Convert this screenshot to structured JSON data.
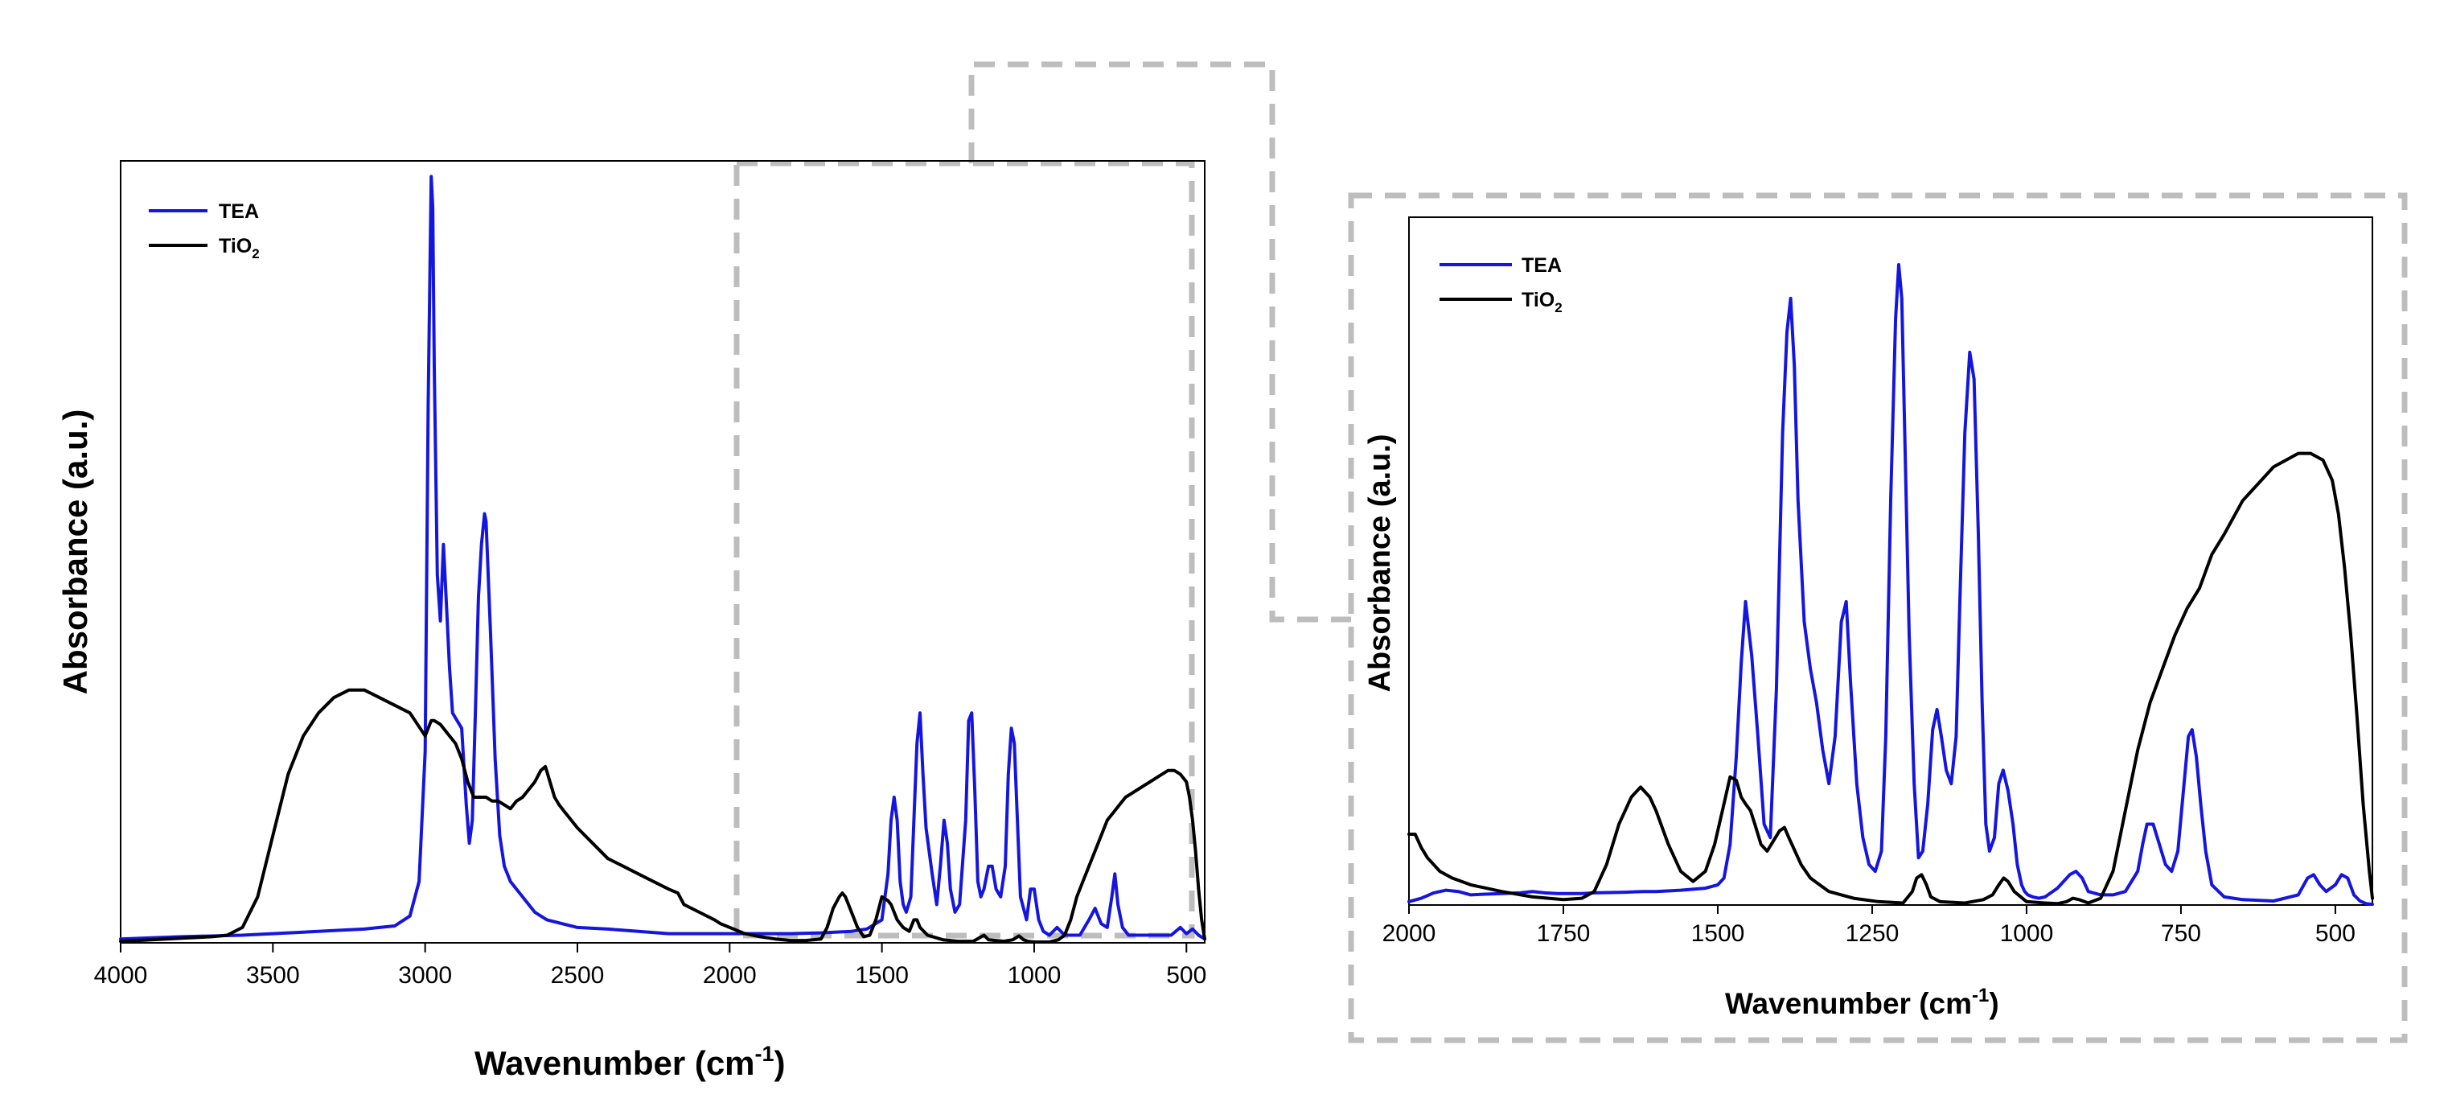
{
  "chart_data": [
    {
      "type": "line",
      "panel": "full-spectrum",
      "xlabel": "Wavenumber (cm",
      "xlabel_sup": "-1",
      "xlabel_close": ")",
      "ylabel": "Absorbance (a.u.)",
      "xlim": [
        4000,
        440
      ],
      "ylim": [
        0,
        1.0
      ],
      "xticks": [
        4000,
        3500,
        3000,
        2500,
        2000,
        1500,
        1000,
        500
      ],
      "legend": {
        "position": "top-left",
        "entries": [
          {
            "name": "TEA",
            "sub": ""
          },
          {
            "name": "TiO",
            "sub": "2"
          }
        ]
      },
      "series": [
        {
          "name": "TEA",
          "color": "#1515e0",
          "x": [
            4000,
            3800,
            3600,
            3500,
            3400,
            3300,
            3200,
            3150,
            3100,
            3050,
            3020,
            3000,
            2990,
            2980,
            2975,
            2970,
            2960,
            2950,
            2940,
            2930,
            2920,
            2910,
            2895,
            2880,
            2865,
            2855,
            2845,
            2835,
            2825,
            2815,
            2805,
            2800,
            2795,
            2785,
            2770,
            2755,
            2740,
            2720,
            2700,
            2680,
            2660,
            2640,
            2620,
            2600,
            2550,
            2500,
            2400,
            2300,
            2200,
            2100,
            2000,
            1900,
            1800,
            1700,
            1600,
            1550,
            1500,
            1480,
            1470,
            1460,
            1450,
            1440,
            1430,
            1420,
            1405,
            1395,
            1385,
            1375,
            1365,
            1355,
            1345,
            1335,
            1320,
            1308,
            1296,
            1285,
            1275,
            1260,
            1245,
            1225,
            1215,
            1205,
            1195,
            1185,
            1175,
            1165,
            1150,
            1138,
            1125,
            1110,
            1095,
            1085,
            1075,
            1065,
            1055,
            1045,
            1025,
            1012,
            1000,
            985,
            970,
            950,
            925,
            900,
            875,
            850,
            820,
            800,
            780,
            760,
            745,
            735,
            725,
            710,
            690,
            650,
            600,
            550,
            520,
            500,
            480,
            460,
            440
          ],
          "y": [
            0.005,
            0.008,
            0.01,
            0.012,
            0.014,
            0.016,
            0.018,
            0.02,
            0.022,
            0.035,
            0.08,
            0.25,
            0.7,
            1.0,
            0.96,
            0.75,
            0.48,
            0.42,
            0.52,
            0.44,
            0.36,
            0.3,
            0.29,
            0.28,
            0.18,
            0.13,
            0.16,
            0.3,
            0.45,
            0.52,
            0.56,
            0.55,
            0.5,
            0.4,
            0.24,
            0.14,
            0.1,
            0.08,
            0.07,
            0.06,
            0.05,
            0.04,
            0.035,
            0.03,
            0.025,
            0.02,
            0.018,
            0.015,
            0.012,
            0.012,
            0.012,
            0.012,
            0.012,
            0.013,
            0.015,
            0.018,
            0.03,
            0.09,
            0.16,
            0.19,
            0.16,
            0.08,
            0.05,
            0.04,
            0.06,
            0.16,
            0.26,
            0.3,
            0.22,
            0.15,
            0.12,
            0.09,
            0.05,
            0.1,
            0.16,
            0.13,
            0.07,
            0.04,
            0.05,
            0.16,
            0.29,
            0.3,
            0.2,
            0.08,
            0.06,
            0.07,
            0.1,
            0.1,
            0.07,
            0.06,
            0.1,
            0.22,
            0.28,
            0.26,
            0.16,
            0.06,
            0.03,
            0.07,
            0.07,
            0.03,
            0.015,
            0.01,
            0.02,
            0.01,
            0.01,
            0.01,
            0.03,
            0.045,
            0.025,
            0.02,
            0.06,
            0.09,
            0.05,
            0.02,
            0.01,
            0.01,
            0.01,
            0.01,
            0.02,
            0.012,
            0.018,
            0.01,
            0.005
          ]
        },
        {
          "name": "TiO2",
          "color": "#000000",
          "x": [
            4000,
            3900,
            3800,
            3700,
            3650,
            3600,
            3550,
            3500,
            3450,
            3400,
            3350,
            3300,
            3250,
            3200,
            3150,
            3100,
            3050,
            3000,
            2980,
            2970,
            2950,
            2920,
            2900,
            2880,
            2860,
            2840,
            2820,
            2800,
            2780,
            2760,
            2740,
            2720,
            2700,
            2680,
            2660,
            2640,
            2620,
            2605,
            2590,
            2575,
            2560,
            2540,
            2520,
            2500,
            2450,
            2400,
            2350,
            2300,
            2250,
            2200,
            2170,
            2150,
            2100,
            2050,
            2030,
            2000,
            1950,
            1900,
            1850,
            1800,
            1750,
            1700,
            1680,
            1660,
            1640,
            1630,
            1620,
            1600,
            1580,
            1560,
            1540,
            1520,
            1500,
            1480,
            1470,
            1460,
            1450,
            1440,
            1430,
            1410,
            1395,
            1385,
            1375,
            1350,
            1300,
            1250,
            1200,
            1165,
            1150,
            1100,
            1070,
            1050,
            1035,
            1020,
            1000,
            950,
            920,
            900,
            880,
            860,
            840,
            820,
            800,
            780,
            760,
            740,
            720,
            700,
            680,
            660,
            640,
            620,
            600,
            580,
            560,
            540,
            520,
            500,
            490,
            480,
            470,
            460,
            450,
            440
          ],
          "y": [
            0.002,
            0.004,
            0.006,
            0.008,
            0.01,
            0.02,
            0.06,
            0.14,
            0.22,
            0.27,
            0.3,
            0.32,
            0.33,
            0.33,
            0.32,
            0.31,
            0.3,
            0.27,
            0.29,
            0.29,
            0.285,
            0.27,
            0.26,
            0.24,
            0.21,
            0.19,
            0.19,
            0.19,
            0.185,
            0.185,
            0.18,
            0.175,
            0.185,
            0.19,
            0.2,
            0.21,
            0.225,
            0.23,
            0.21,
            0.19,
            0.18,
            0.17,
            0.16,
            0.15,
            0.13,
            0.11,
            0.1,
            0.09,
            0.08,
            0.07,
            0.065,
            0.05,
            0.04,
            0.03,
            0.025,
            0.02,
            0.012,
            0.008,
            0.005,
            0.003,
            0.003,
            0.005,
            0.02,
            0.045,
            0.06,
            0.065,
            0.06,
            0.04,
            0.02,
            0.008,
            0.01,
            0.03,
            0.06,
            0.055,
            0.05,
            0.04,
            0.03,
            0.025,
            0.02,
            0.015,
            0.03,
            0.03,
            0.02,
            0.01,
            0.004,
            0.002,
            0.002,
            0.01,
            0.004,
            0.002,
            0.004,
            0.009,
            0.004,
            0.002,
            0.001,
            0.001,
            0.004,
            0.01,
            0.03,
            0.06,
            0.08,
            0.1,
            0.12,
            0.14,
            0.16,
            0.17,
            0.18,
            0.19,
            0.195,
            0.2,
            0.205,
            0.21,
            0.215,
            0.22,
            0.225,
            0.225,
            0.22,
            0.21,
            0.19,
            0.16,
            0.12,
            0.07,
            0.03,
            0.005
          ]
        }
      ]
    },
    {
      "type": "line",
      "panel": "zoom-2000-440",
      "xlabel": "Wavenumber (cm",
      "xlabel_sup": "-1",
      "xlabel_close": ")",
      "ylabel": "Absorbance (a.u.)",
      "xlim": [
        2000,
        440
      ],
      "ylim": [
        0,
        1.0
      ],
      "xticks": [
        2000,
        1750,
        1500,
        1250,
        1000,
        750,
        500
      ],
      "legend": {
        "position": "top-left",
        "entries": [
          {
            "name": "TEA",
            "sub": ""
          },
          {
            "name": "TiO",
            "sub": "2"
          }
        ]
      },
      "series": [
        {
          "name": "TEA",
          "color": "#1515e0",
          "x": [
            2000,
            1980,
            1960,
            1940,
            1920,
            1900,
            1880,
            1850,
            1820,
            1800,
            1780,
            1760,
            1720,
            1700,
            1650,
            1620,
            1600,
            1560,
            1520,
            1500,
            1490,
            1480,
            1470,
            1462,
            1455,
            1445,
            1435,
            1425,
            1415,
            1405,
            1395,
            1388,
            1382,
            1376,
            1370,
            1360,
            1350,
            1340,
            1330,
            1320,
            1310,
            1300,
            1292,
            1285,
            1275,
            1265,
            1255,
            1245,
            1235,
            1228,
            1220,
            1212,
            1207,
            1202,
            1196,
            1190,
            1182,
            1175,
            1168,
            1160,
            1152,
            1145,
            1138,
            1130,
            1122,
            1114,
            1108,
            1100,
            1092,
            1085,
            1078,
            1072,
            1066,
            1060,
            1052,
            1045,
            1038,
            1030,
            1022,
            1015,
            1008,
            1003,
            998,
            990,
            980,
            970,
            950,
            930,
            920,
            910,
            900,
            880,
            860,
            840,
            820,
            812,
            805,
            795,
            785,
            775,
            765,
            755,
            745,
            738,
            732,
            725,
            718,
            710,
            700,
            680,
            650,
            600,
            560,
            545,
            535,
            525,
            515,
            500,
            490,
            480,
            470,
            460,
            450,
            440
          ],
          "y": [
            0.005,
            0.01,
            0.018,
            0.022,
            0.02,
            0.015,
            0.016,
            0.017,
            0.018,
            0.02,
            0.018,
            0.017,
            0.017,
            0.018,
            0.019,
            0.02,
            0.02,
            0.022,
            0.025,
            0.03,
            0.04,
            0.09,
            0.22,
            0.36,
            0.45,
            0.37,
            0.25,
            0.12,
            0.1,
            0.32,
            0.7,
            0.85,
            0.9,
            0.8,
            0.6,
            0.42,
            0.35,
            0.3,
            0.23,
            0.18,
            0.25,
            0.42,
            0.45,
            0.33,
            0.18,
            0.1,
            0.06,
            0.05,
            0.08,
            0.25,
            0.6,
            0.87,
            0.95,
            0.9,
            0.65,
            0.4,
            0.18,
            0.07,
            0.08,
            0.15,
            0.26,
            0.29,
            0.25,
            0.2,
            0.18,
            0.25,
            0.45,
            0.7,
            0.82,
            0.78,
            0.55,
            0.3,
            0.12,
            0.08,
            0.1,
            0.18,
            0.2,
            0.17,
            0.12,
            0.06,
            0.03,
            0.02,
            0.015,
            0.012,
            0.01,
            0.012,
            0.025,
            0.045,
            0.05,
            0.04,
            0.02,
            0.015,
            0.015,
            0.02,
            0.05,
            0.09,
            0.12,
            0.12,
            0.09,
            0.06,
            0.05,
            0.08,
            0.18,
            0.25,
            0.26,
            0.22,
            0.15,
            0.08,
            0.03,
            0.012,
            0.008,
            0.006,
            0.015,
            0.04,
            0.045,
            0.03,
            0.02,
            0.03,
            0.045,
            0.04,
            0.015,
            0.006,
            0.002,
            0.001
          ]
        },
        {
          "name": "TiO2",
          "color": "#000000",
          "x": [
            2000,
            1990,
            1980,
            1970,
            1950,
            1930,
            1900,
            1850,
            1800,
            1750,
            1720,
            1700,
            1680,
            1660,
            1640,
            1625,
            1610,
            1600,
            1580,
            1560,
            1540,
            1520,
            1505,
            1490,
            1480,
            1470,
            1462,
            1455,
            1447,
            1440,
            1430,
            1420,
            1410,
            1400,
            1392,
            1385,
            1375,
            1365,
            1350,
            1320,
            1280,
            1240,
            1200,
            1185,
            1178,
            1170,
            1162,
            1155,
            1140,
            1100,
            1070,
            1055,
            1045,
            1037,
            1030,
            1020,
            1000,
            970,
            950,
            935,
            925,
            915,
            900,
            880,
            860,
            840,
            820,
            800,
            780,
            760,
            740,
            720,
            700,
            680,
            650,
            620,
            600,
            580,
            560,
            540,
            520,
            505,
            495,
            485,
            475,
            465,
            455,
            445,
            440
          ],
          "y": [
            0.105,
            0.105,
            0.085,
            0.07,
            0.05,
            0.04,
            0.03,
            0.02,
            0.012,
            0.008,
            0.01,
            0.02,
            0.06,
            0.12,
            0.16,
            0.175,
            0.16,
            0.14,
            0.09,
            0.05,
            0.035,
            0.05,
            0.09,
            0.15,
            0.19,
            0.185,
            0.16,
            0.15,
            0.14,
            0.12,
            0.09,
            0.08,
            0.095,
            0.11,
            0.115,
            0.1,
            0.08,
            0.06,
            0.04,
            0.02,
            0.01,
            0.005,
            0.003,
            0.02,
            0.04,
            0.045,
            0.03,
            0.012,
            0.005,
            0.003,
            0.008,
            0.015,
            0.03,
            0.04,
            0.035,
            0.02,
            0.005,
            0.003,
            0.002,
            0.005,
            0.01,
            0.008,
            0.003,
            0.01,
            0.05,
            0.14,
            0.23,
            0.3,
            0.35,
            0.4,
            0.44,
            0.47,
            0.52,
            0.55,
            0.6,
            0.63,
            0.65,
            0.66,
            0.67,
            0.67,
            0.66,
            0.63,
            0.58,
            0.5,
            0.4,
            0.28,
            0.15,
            0.05,
            0.01
          ]
        }
      ]
    }
  ]
}
